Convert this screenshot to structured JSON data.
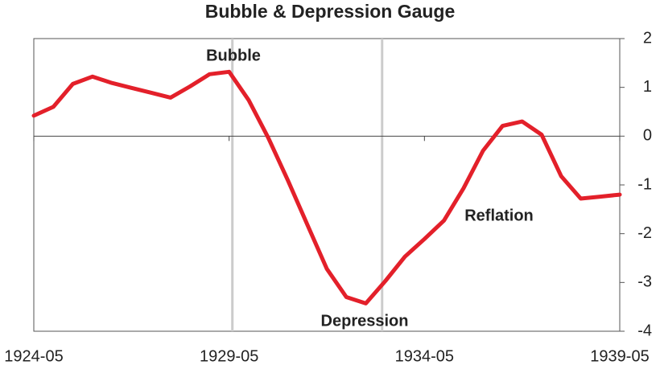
{
  "chart_data": {
    "type": "line",
    "title": "Bubble & Depression Gauge",
    "x": [
      "1924-05",
      "1924-11",
      "1925-05",
      "1925-11",
      "1926-05",
      "1926-11",
      "1927-05",
      "1927-11",
      "1928-05",
      "1928-11",
      "1929-05",
      "1929-11",
      "1930-05",
      "1930-11",
      "1931-05",
      "1931-11",
      "1932-05",
      "1932-11",
      "1933-05",
      "1933-11",
      "1934-05",
      "1934-11",
      "1935-05",
      "1935-11",
      "1936-05",
      "1936-11",
      "1937-05",
      "1937-11",
      "1938-05",
      "1938-11",
      "1939-05"
    ],
    "series": [
      {
        "color": "#e3202a",
        "values": [
          0.42,
          0.6,
          1.07,
          1.22,
          1.09,
          0.99,
          0.89,
          0.79,
          1.02,
          1.27,
          1.32,
          0.74,
          -0.03,
          -0.9,
          -1.81,
          -2.72,
          -3.3,
          -3.43,
          -2.97,
          -2.47,
          -2.11,
          -1.73,
          -1.07,
          -0.3,
          0.21,
          0.3,
          0.03,
          -0.82,
          -1.28,
          -1.24,
          -1.2
        ]
      }
    ],
    "xlim": [
      "1924-05",
      "1939-05"
    ],
    "xticks": [
      "1924-05",
      "1929-05",
      "1934-05",
      "1939-05"
    ],
    "ylim": [
      -4,
      2
    ],
    "yticks": [
      -4,
      -3,
      -2,
      -1,
      0,
      1,
      2
    ],
    "markers": [
      "1929-06",
      "1933-04"
    ],
    "annotations": [
      "Bubble",
      "Depression",
      "Reflation"
    ]
  }
}
